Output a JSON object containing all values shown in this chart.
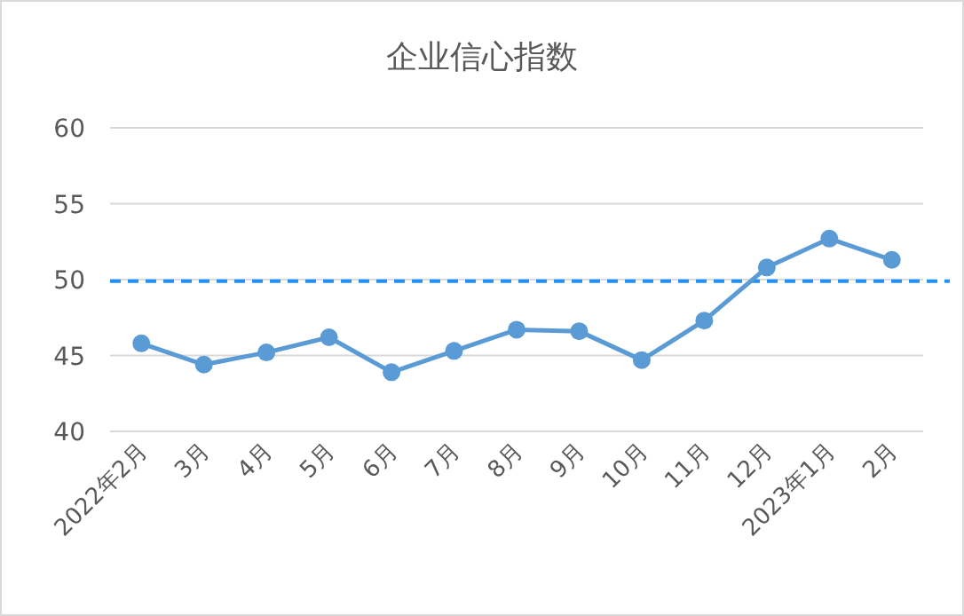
{
  "chart_data": {
    "type": "line",
    "title": "企业信心指数",
    "categories": [
      "2022年2月",
      "3月",
      "4月",
      "5月",
      "6月",
      "7月",
      "8月",
      "9月",
      "10月",
      "11月",
      "12月",
      "2023年1月",
      "2月"
    ],
    "series": [
      {
        "color": "#5b9bd5",
        "values": [
          45.8,
          44.4,
          45.2,
          46.2,
          43.9,
          45.3,
          46.7,
          46.6,
          44.7,
          47.3,
          50.8,
          52.7,
          51.3
        ]
      }
    ],
    "ylim": [
      40,
      60
    ],
    "yticks": [
      40,
      45,
      50,
      55,
      60
    ],
    "grid": "y",
    "marker": "circle",
    "line_style": "solid",
    "ref_lines": [
      {
        "axis": "y",
        "value": 49.9,
        "color": "#1e90ff",
        "line_style": "dashed"
      }
    ]
  }
}
